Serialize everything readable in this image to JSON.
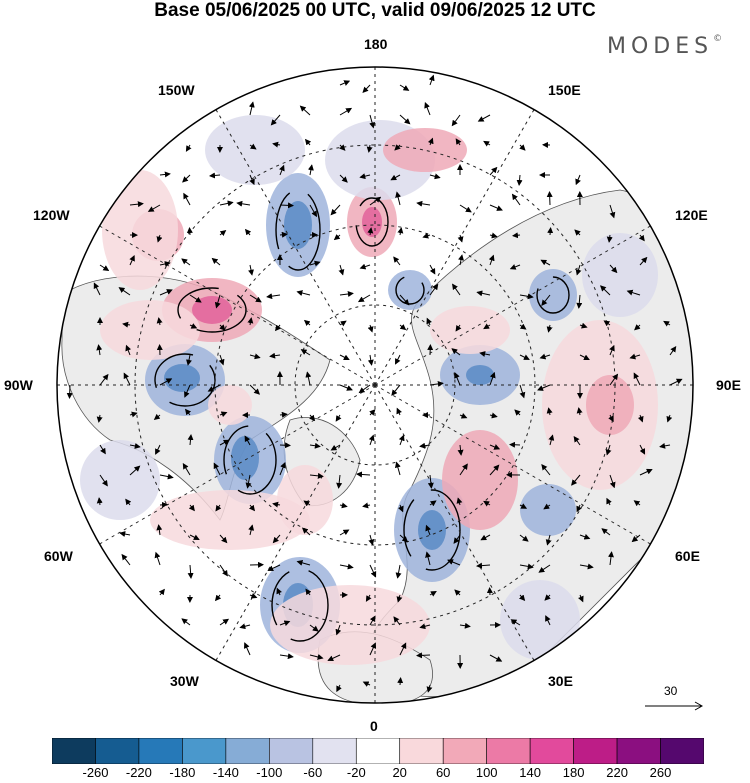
{
  "title": "Base 05/06/2025 00 UTC, valid 09/06/2025 12 UTC",
  "brand": {
    "name": "MODES",
    "mark": "©"
  },
  "longitude_labels": {
    "n180": "180",
    "e150": "150E",
    "e120": "120E",
    "e90": "90E",
    "e60": "60E",
    "e30": "30E",
    "s0": "0",
    "w30": "30W",
    "w60": "60W",
    "w90": "90W",
    "w120": "120W",
    "w150": "150W"
  },
  "reference_vector": {
    "value": "30"
  },
  "colorbar": {
    "labels": [
      "-260",
      "-220",
      "-180",
      "-140",
      "-100",
      "-60",
      "-20",
      "20",
      "60",
      "100",
      "140",
      "180",
      "220",
      "260"
    ],
    "colors": [
      "#0d3b5e",
      "#155c91",
      "#2679b8",
      "#4a98cc",
      "#86acd6",
      "#b9c3e2",
      "#e2e2f0",
      "#ffffff",
      "#f9d9dc",
      "#f2a9b8",
      "#ec7aa6",
      "#e24a9c",
      "#bd1d87",
      "#8b0f80",
      "#55086e"
    ]
  },
  "anomaly_colors": {
    "negative_strong": "#5a8bc5",
    "negative": "#9fb4dc",
    "negative_weak": "#dcdcec",
    "positive_weak": "#f7d9dd",
    "positive": "#efa9b7",
    "positive_strong": "#e2619a",
    "land": "#ececec"
  }
}
